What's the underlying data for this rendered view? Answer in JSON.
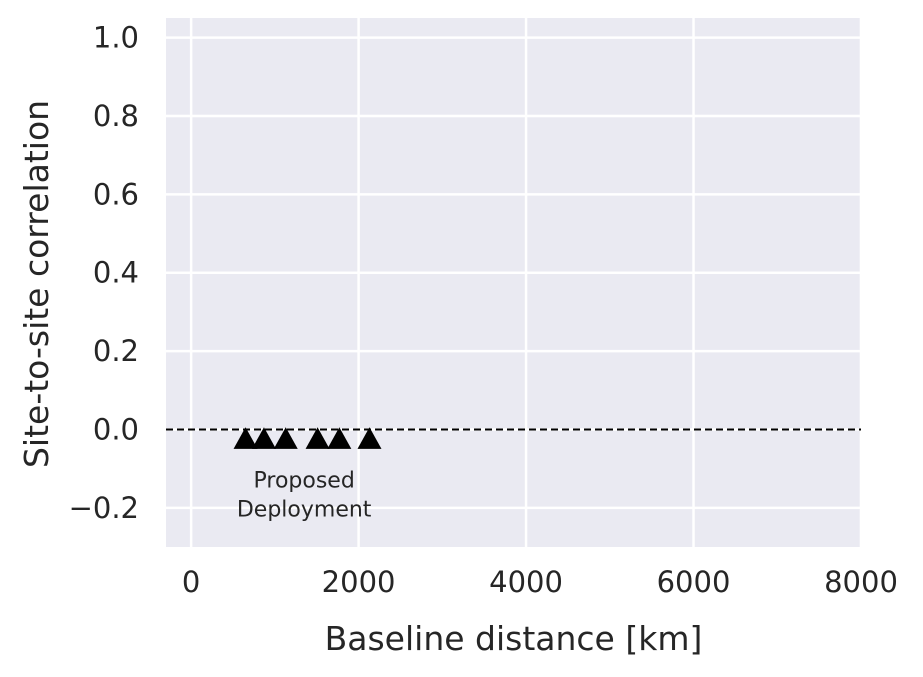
{
  "chart_data": {
    "type": "scatter",
    "title": "",
    "xlabel": "Baseline distance [km]",
    "ylabel": "Site-to-site correlation",
    "xlim": [
      -300,
      8000
    ],
    "ylim": [
      -0.3,
      1.05
    ],
    "xticks": [
      0,
      2000,
      4000,
      6000,
      8000
    ],
    "xtick_labels": [
      "0",
      "2000",
      "4000",
      "6000",
      "8000"
    ],
    "yticks": [
      -0.2,
      0.0,
      0.2,
      0.4,
      0.6,
      0.8,
      1.0
    ],
    "ytick_labels": [
      "−0.2",
      "0.0",
      "0.2",
      "0.4",
      "0.6",
      "0.8",
      "1.0"
    ],
    "grid": true,
    "background": "#eaeaf2",
    "grid_color": "#ffffff",
    "reference_line": {
      "y": 0.0,
      "style": "dashed",
      "color": "#000000"
    },
    "series": [
      {
        "marker": "triangle-up",
        "color": "#000000",
        "x": [
          650,
          870,
          1130,
          1510,
          1770,
          2130
        ],
        "y": [
          -0.025,
          -0.025,
          -0.025,
          -0.025,
          -0.025,
          -0.025
        ]
      }
    ],
    "annotations": [
      {
        "text_lines": [
          "Proposed",
          "Deployment"
        ],
        "x": 1350,
        "y": -0.165
      }
    ]
  }
}
